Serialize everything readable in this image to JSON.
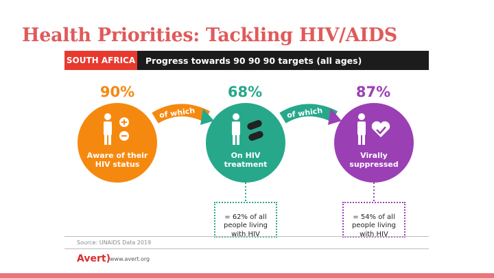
{
  "slide": {
    "title": "Health Priorities: Tackling HIV/AIDS"
  },
  "infographic": {
    "country": "SOUTH AFRICA",
    "subtitle": "Progress towards 90 90 90 targets (all ages)",
    "stages": [
      {
        "percent": "90%",
        "label": "Aware of their\nHIV status",
        "color": "#f5890f"
      },
      {
        "percent": "68%",
        "label": "On HIV\ntreatment",
        "color": "#27a88a"
      },
      {
        "percent": "87%",
        "label": "Virally\nsuppressed",
        "color": "#9b3fb5"
      }
    ],
    "connector_label": "of which",
    "boxes": [
      {
        "text": "= 62% of all\npeople living\nwith HIV",
        "color": "#27a88a"
      },
      {
        "text": "= 54% of all\npeople living\nwith HIV",
        "color": "#9b3fb5"
      }
    ],
    "source": "Source: UNAIDS Data 2019",
    "brand": "Avert",
    "url": "www.avert.org",
    "accent_red": "#e8392f"
  }
}
